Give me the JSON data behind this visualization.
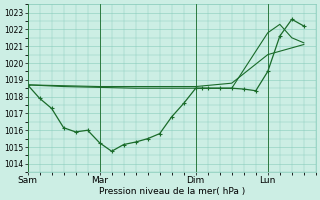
{
  "background_color": "#cceee4",
  "grid_color": "#88ccbb",
  "line_color": "#1a6b2a",
  "xlabel": "Pression niveau de la mer( hPa )",
  "ylim": [
    1013.5,
    1023.5
  ],
  "yticks": [
    1014,
    1015,
    1016,
    1017,
    1018,
    1019,
    1020,
    1021,
    1022,
    1023
  ],
  "day_labels": [
    "Sam",
    "Mar",
    "Dim",
    "Lun"
  ],
  "day_positions": [
    0,
    6,
    14,
    20
  ],
  "xlim": [
    0,
    24
  ],
  "line1_x": [
    0,
    1,
    2,
    3,
    4,
    5,
    6,
    7,
    8,
    9,
    10,
    11,
    12,
    13,
    14,
    14.5,
    15,
    16,
    17,
    18,
    19,
    20,
    21,
    22,
    23
  ],
  "line1_y": [
    1018.7,
    1017.9,
    1017.3,
    1016.15,
    1015.9,
    1016.0,
    1015.25,
    1014.75,
    1015.15,
    1015.3,
    1015.5,
    1015.8,
    1016.8,
    1017.6,
    1018.5,
    1018.5,
    1018.5,
    1018.5,
    1018.5,
    1018.45,
    1018.35,
    1019.5,
    1021.6,
    1022.6,
    1022.2
  ],
  "line2_x": [
    0,
    3,
    6,
    9,
    12,
    14,
    17,
    20,
    23
  ],
  "line2_y": [
    1018.7,
    1018.65,
    1018.6,
    1018.6,
    1018.6,
    1018.6,
    1018.8,
    1020.5,
    1021.1
  ],
  "line3_x": [
    0,
    3,
    6,
    9,
    12,
    14,
    17,
    20,
    21,
    22,
    23
  ],
  "line3_y": [
    1018.7,
    1018.6,
    1018.55,
    1018.5,
    1018.5,
    1018.5,
    1018.5,
    1021.8,
    1022.3,
    1021.5,
    1021.2
  ]
}
